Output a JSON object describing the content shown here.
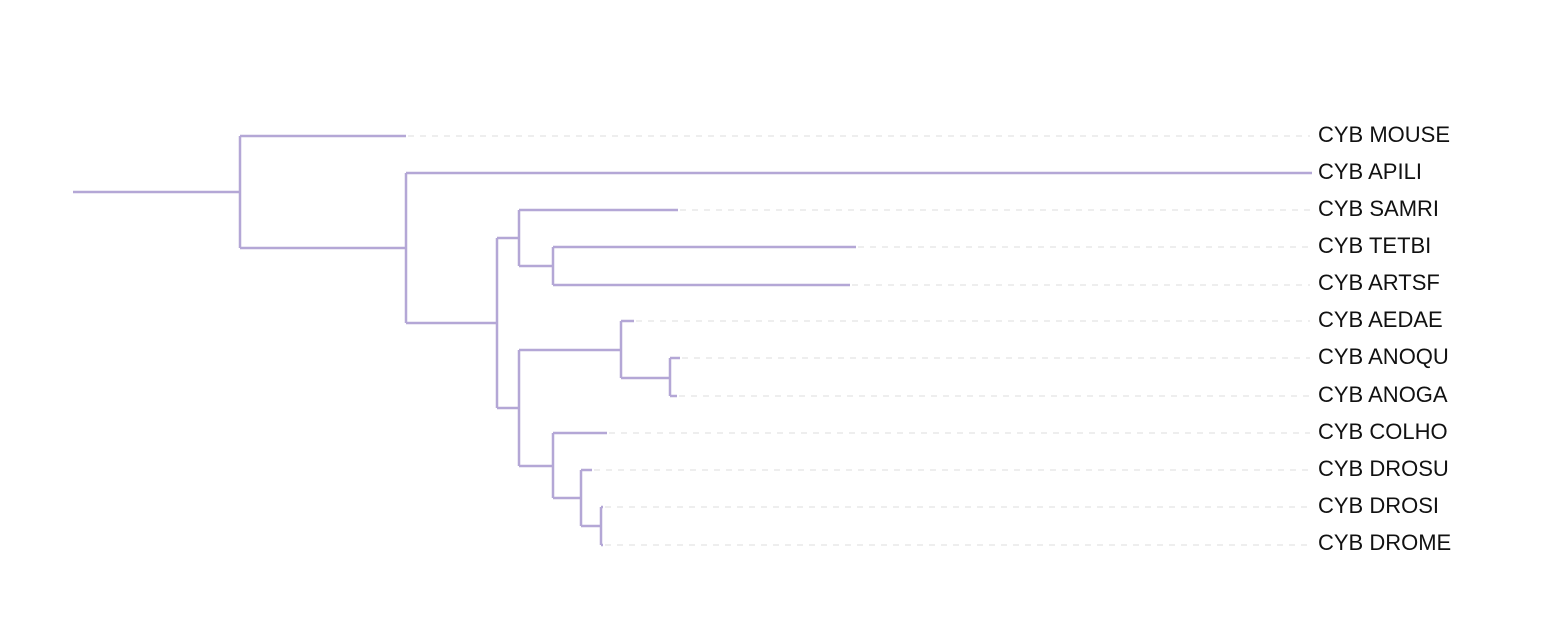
{
  "nodes": [
    {
      "label": "CYB MOUSE"
    },
    {
      "label": "CYB APILI"
    },
    {
      "label": "CYB SAMRI"
    },
    {
      "label": "CYB TETBI"
    },
    {
      "label": "CYB ARTSF"
    },
    {
      "label": "CYB AEDAE"
    },
    {
      "label": "CYB ANOQU"
    },
    {
      "label": "CYB ANOGA"
    },
    {
      "label": "CYB COLHO"
    },
    {
      "label": "CYB DROSU"
    },
    {
      "label": "CYB DROSI"
    },
    {
      "label": "CYB DROME"
    }
  ]
}
